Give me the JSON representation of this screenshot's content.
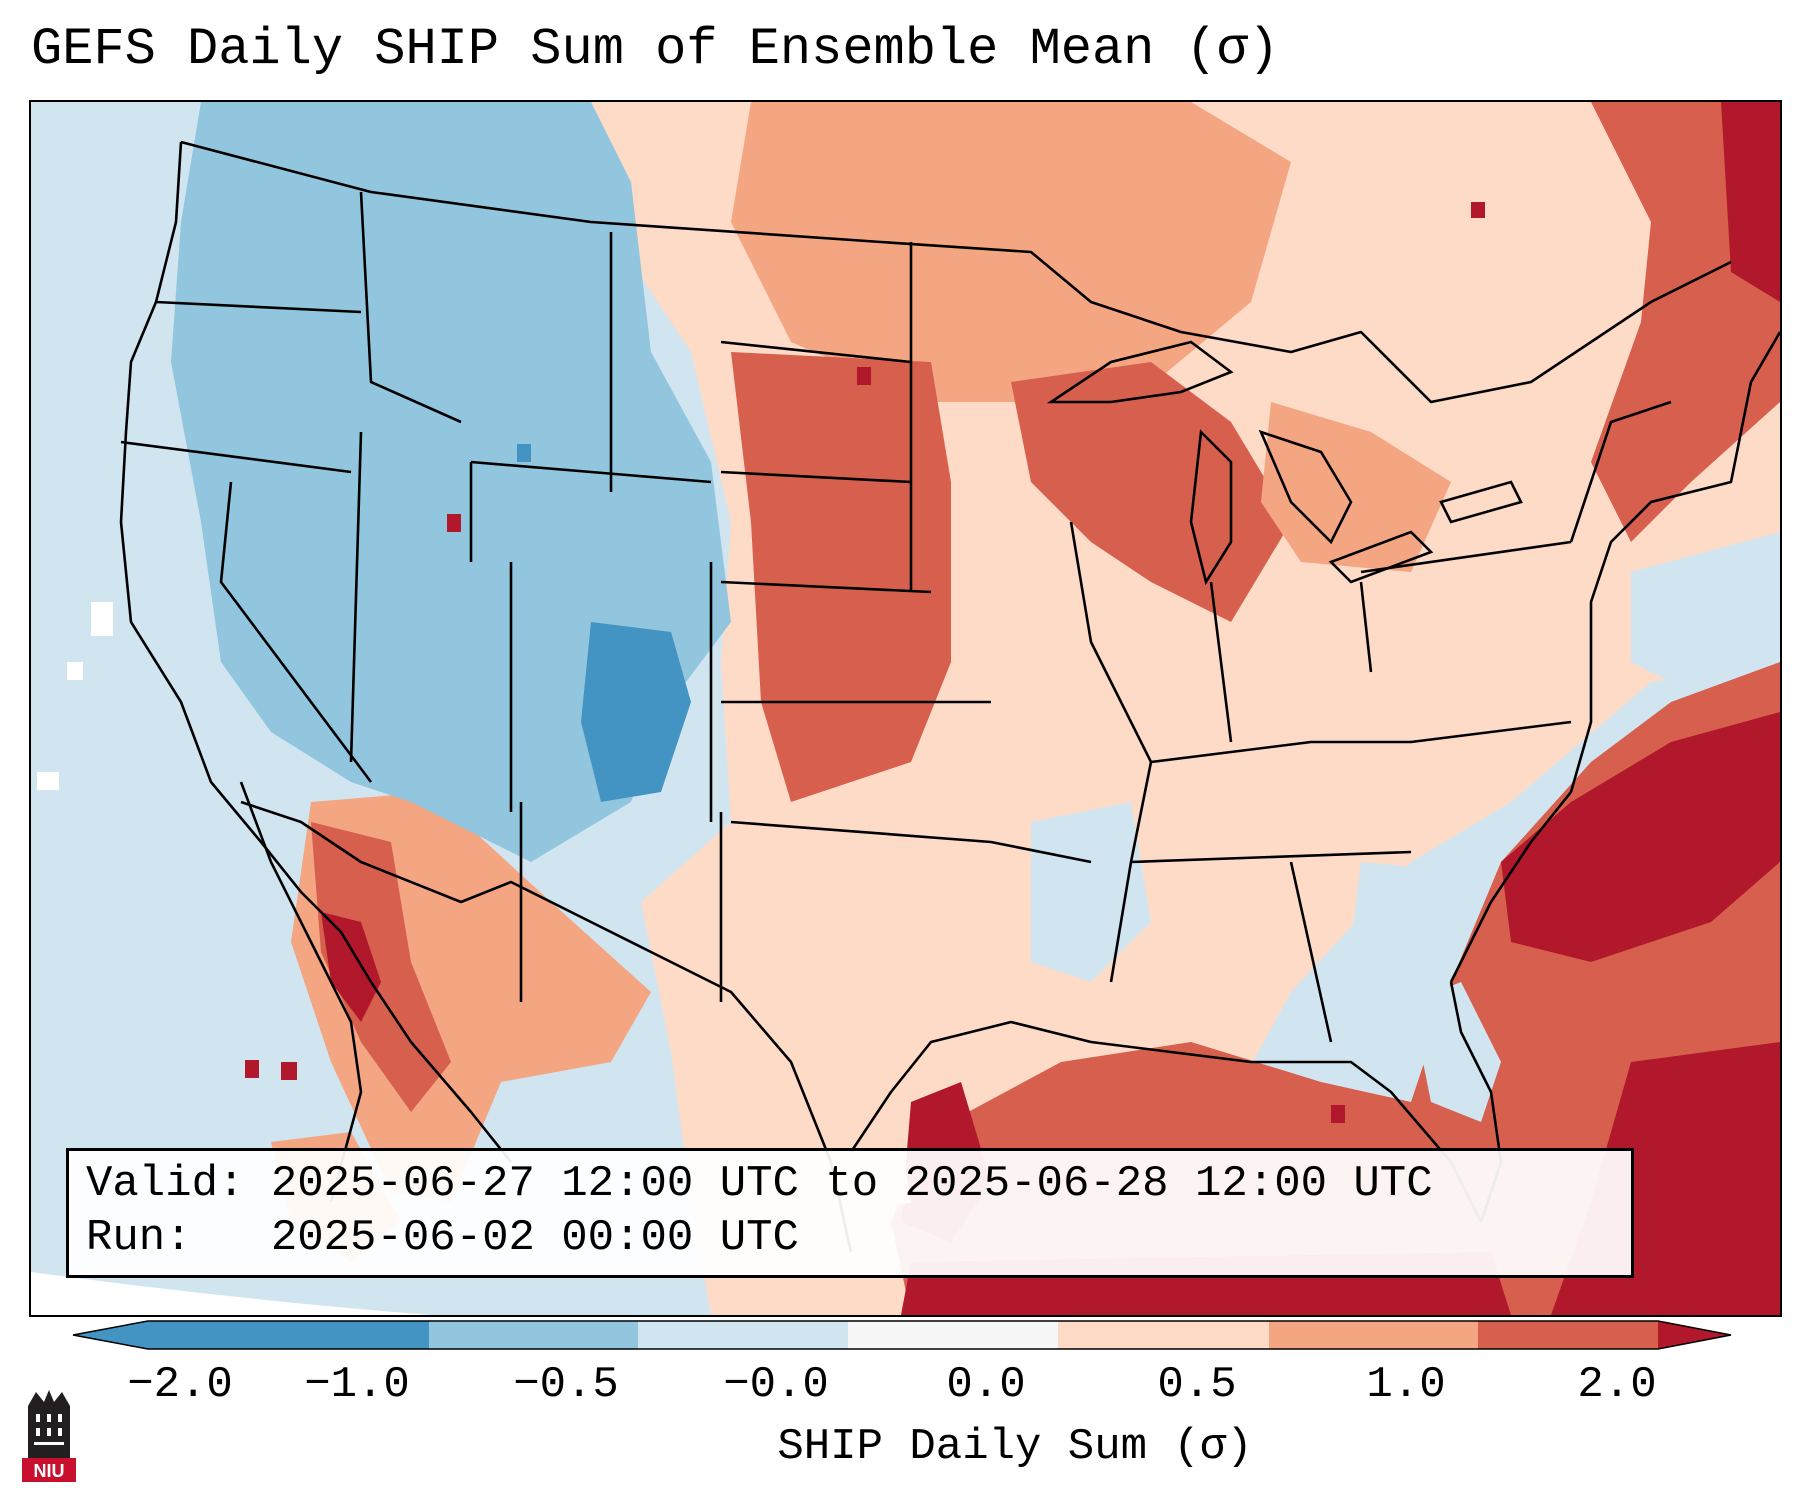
{
  "title": "GEFS Daily SHIP Sum of Ensemble Mean (σ)",
  "info": {
    "valid": "Valid: 2025-06-27 12:00 UTC to 2025-06-28 12:00 UTC",
    "run": "Run:   2025-06-02 00:00 UTC"
  },
  "colorbar": {
    "label": "SHIP Daily Sum (σ)",
    "ticks": [
      "−2.0",
      "−1.0",
      "−0.5",
      "−0.0",
      "0.0",
      "0.5",
      "1.0",
      "2.0"
    ],
    "colors": [
      "#4393c3",
      "#92c5de",
      "#d1e5f0",
      "#f7f7f7",
      "#fddbc7",
      "#f4a582",
      "#d6604d",
      "#b2182b"
    ],
    "extend": "both"
  },
  "logo": {
    "text": "NIU"
  },
  "map": {
    "legend": {
      "neg_strong": "#4393c3",
      "neg_mid": "#92c5de",
      "neg_weak": "#d1e5f0",
      "pos_weak": "#fddbc7",
      "pos_mid": "#f4a582",
      "pos_strong": "#d6604d",
      "pos_max": "#b2182b"
    },
    "regions": [
      {
        "name": "pacific-northwest",
        "category": "neg_mid"
      },
      {
        "name": "great-basin",
        "category": "neg_mid"
      },
      {
        "name": "colorado-rockies",
        "category": "neg_strong"
      },
      {
        "name": "northern-plains",
        "category": "pos_strong"
      },
      {
        "name": "great-lakes",
        "category": "pos_strong"
      },
      {
        "name": "northeast",
        "category": "pos_weak"
      },
      {
        "name": "texas",
        "category": "pos_weak"
      },
      {
        "name": "southeast",
        "category": "pos_weak"
      },
      {
        "name": "gulf-of-mexico",
        "category": "pos_strong"
      },
      {
        "name": "western-atlantic",
        "category": "pos_max"
      },
      {
        "name": "desert-southwest",
        "category": "pos_strong"
      }
    ]
  }
}
